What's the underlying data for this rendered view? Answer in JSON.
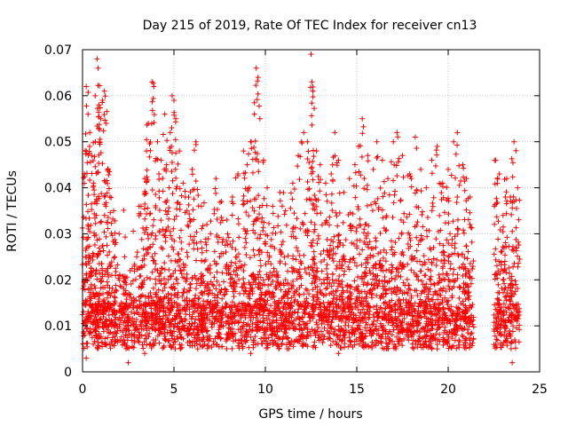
{
  "chart_data": {
    "type": "scatter",
    "title": "Day 215 of 2019, Rate Of TEC Index for receiver cn13",
    "xlabel": "GPS time / hours",
    "ylabel": "ROTI / TECUs",
    "xlim": [
      0,
      25
    ],
    "ylim": [
      0,
      0.07
    ],
    "xticks": [
      0,
      5,
      10,
      15,
      20,
      25
    ],
    "xtick_labels": [
      "0",
      "5",
      "10",
      "15",
      "20",
      "25"
    ],
    "yticks": [
      0,
      0.01,
      0.02,
      0.03,
      0.04,
      0.05,
      0.06,
      0.07
    ],
    "ytick_labels": [
      "0",
      "0.01",
      "0.02",
      "0.03",
      "0.04",
      "0.05",
      "0.06",
      "0.07"
    ],
    "grid": true,
    "marker": "+",
    "colors": {
      "series": "#ff0000",
      "grid": "#a0a0a0",
      "axis": "#000000"
    },
    "series": [
      {
        "name": "ROTI",
        "points": [
          [
            0.1,
            0.043
          ],
          [
            0.2,
            0.062
          ],
          [
            0.3,
            0.056
          ],
          [
            0.4,
            0.052
          ],
          [
            0.5,
            0.047
          ],
          [
            0.6,
            0.041
          ],
          [
            0.7,
            0.05
          ],
          [
            0.8,
            0.068
          ],
          [
            0.85,
            0.066
          ],
          [
            0.9,
            0.058
          ],
          [
            1.0,
            0.055
          ],
          [
            1.1,
            0.059
          ],
          [
            1.2,
            0.061
          ],
          [
            1.3,
            0.054
          ],
          [
            1.4,
            0.044
          ],
          [
            1.5,
            0.038
          ],
          [
            1.7,
            0.035
          ],
          [
            2.0,
            0.03
          ],
          [
            2.3,
            0.025
          ],
          [
            2.6,
            0.022
          ],
          [
            3.0,
            0.026
          ],
          [
            3.2,
            0.036
          ],
          [
            3.4,
            0.042
          ],
          [
            3.5,
            0.048
          ],
          [
            3.6,
            0.054
          ],
          [
            3.8,
            0.063
          ],
          [
            3.9,
            0.062
          ],
          [
            4.1,
            0.05
          ],
          [
            4.3,
            0.046
          ],
          [
            4.5,
            0.056
          ],
          [
            4.6,
            0.045
          ],
          [
            4.8,
            0.052
          ],
          [
            4.9,
            0.06
          ],
          [
            5.0,
            0.059
          ],
          [
            5.1,
            0.055
          ],
          [
            5.3,
            0.048
          ],
          [
            5.5,
            0.041
          ],
          [
            5.8,
            0.038
          ],
          [
            6.0,
            0.044
          ],
          [
            6.2,
            0.05
          ],
          [
            6.5,
            0.036
          ],
          [
            6.8,
            0.032
          ],
          [
            7.0,
            0.03
          ],
          [
            7.3,
            0.042
          ],
          [
            7.6,
            0.037
          ],
          [
            7.9,
            0.033
          ],
          [
            8.2,
            0.038
          ],
          [
            8.5,
            0.043
          ],
          [
            8.8,
            0.048
          ],
          [
            9.0,
            0.045
          ],
          [
            9.2,
            0.05
          ],
          [
            9.4,
            0.056
          ],
          [
            9.5,
            0.066
          ],
          [
            9.6,
            0.064
          ],
          [
            9.7,
            0.055
          ],
          [
            9.9,
            0.046
          ],
          [
            10.1,
            0.04
          ],
          [
            10.4,
            0.036
          ],
          [
            10.8,
            0.039
          ],
          [
            11.1,
            0.035
          ],
          [
            11.5,
            0.041
          ],
          [
            11.8,
            0.047
          ],
          [
            12.1,
            0.052
          ],
          [
            12.3,
            0.05
          ],
          [
            12.5,
            0.069
          ],
          [
            12.55,
            0.063
          ],
          [
            12.6,
            0.061
          ],
          [
            12.8,
            0.048
          ],
          [
            13.0,
            0.045
          ],
          [
            13.3,
            0.041
          ],
          [
            13.6,
            0.043
          ],
          [
            13.8,
            0.052
          ],
          [
            14.0,
            0.046
          ],
          [
            14.3,
            0.039
          ],
          [
            14.6,
            0.042
          ],
          [
            14.9,
            0.045
          ],
          [
            15.1,
            0.049
          ],
          [
            15.3,
            0.055
          ],
          [
            15.6,
            0.047
          ],
          [
            15.9,
            0.044
          ],
          [
            16.1,
            0.05
          ],
          [
            16.4,
            0.046
          ],
          [
            16.7,
            0.042
          ],
          [
            17.0,
            0.05
          ],
          [
            17.2,
            0.052
          ],
          [
            17.5,
            0.047
          ],
          [
            17.9,
            0.043
          ],
          [
            18.2,
            0.051
          ],
          [
            18.5,
            0.044
          ],
          [
            18.8,
            0.04
          ],
          [
            19.1,
            0.046
          ],
          [
            19.4,
            0.049
          ],
          [
            19.7,
            0.041
          ],
          [
            20.0,
            0.044
          ],
          [
            20.3,
            0.05
          ],
          [
            20.5,
            0.052
          ],
          [
            20.8,
            0.045
          ],
          [
            21.0,
            0.042
          ],
          [
            21.2,
            0.038
          ],
          [
            22.6,
            0.046
          ],
          [
            22.8,
            0.043
          ],
          [
            23.0,
            0.034
          ],
          [
            23.2,
            0.042
          ],
          [
            23.4,
            0.038
          ],
          [
            23.6,
            0.05
          ],
          [
            23.8,
            0.04
          ],
          [
            23.5,
            0.002
          ],
          [
            0.2,
            0.003
          ],
          [
            2.5,
            0.002
          ],
          [
            3.4,
            0.004
          ],
          [
            6.3,
            0.005
          ],
          [
            9.2,
            0.004
          ],
          [
            11.2,
            0.005
          ],
          [
            14.0,
            0.004
          ],
          [
            16.5,
            0.005
          ],
          [
            19.4,
            0.005
          ],
          [
            21.2,
            0.006
          ],
          [
            22.6,
            0.006
          ],
          [
            0.3,
            0.012
          ],
          [
            0.5,
            0.018
          ],
          [
            0.8,
            0.025
          ],
          [
            1.2,
            0.015
          ],
          [
            1.6,
            0.021
          ],
          [
            2.1,
            0.013
          ],
          [
            2.4,
            0.009
          ],
          [
            2.8,
            0.016
          ],
          [
            3.3,
            0.019
          ],
          [
            3.7,
            0.027
          ],
          [
            4.1,
            0.022
          ],
          [
            4.4,
            0.031
          ],
          [
            4.7,
            0.017
          ],
          [
            5.2,
            0.024
          ],
          [
            5.6,
            0.014
          ],
          [
            6.1,
            0.028
          ],
          [
            6.6,
            0.011
          ],
          [
            7.1,
            0.019
          ],
          [
            7.5,
            0.025
          ],
          [
            8.0,
            0.012
          ],
          [
            8.4,
            0.022
          ],
          [
            8.9,
            0.029
          ],
          [
            9.3,
            0.017
          ],
          [
            9.8,
            0.026
          ],
          [
            10.3,
            0.013
          ],
          [
            10.7,
            0.021
          ],
          [
            11.3,
            0.018
          ],
          [
            11.7,
            0.027
          ],
          [
            12.2,
            0.015
          ],
          [
            12.7,
            0.032
          ],
          [
            13.2,
            0.02
          ],
          [
            13.5,
            0.012
          ],
          [
            14.1,
            0.028
          ],
          [
            14.5,
            0.016
          ],
          [
            15.0,
            0.023
          ],
          [
            15.4,
            0.031
          ],
          [
            15.8,
            0.019
          ],
          [
            16.3,
            0.026
          ],
          [
            16.8,
            0.014
          ],
          [
            17.3,
            0.029
          ],
          [
            17.8,
            0.017
          ],
          [
            18.3,
            0.024
          ],
          [
            18.7,
            0.012
          ],
          [
            19.2,
            0.027
          ],
          [
            19.6,
            0.018
          ],
          [
            20.1,
            0.03
          ],
          [
            20.6,
            0.016
          ],
          [
            21.1,
            0.022
          ],
          [
            22.7,
            0.015
          ],
          [
            23.1,
            0.024
          ],
          [
            23.7,
            0.019
          ]
        ]
      }
    ]
  }
}
